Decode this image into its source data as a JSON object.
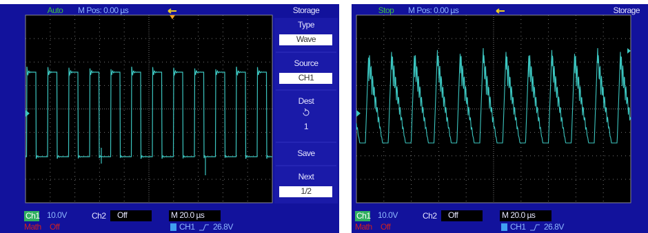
{
  "left": {
    "header": {
      "mode": "Auto",
      "position": "M Pos: 0.00 µs",
      "menu_title": "Storage"
    },
    "menu": [
      {
        "label": "Type",
        "value": "Wave"
      },
      {
        "label": "Source",
        "value": "CH1"
      },
      {
        "label": "Dest",
        "value": "1"
      },
      {
        "label": "Save"
      },
      {
        "label": "Next",
        "value": "1/2"
      }
    ],
    "status": {
      "ch1": "Ch1",
      "ch1_scale": "10.0V",
      "ch2": "Ch2",
      "ch2_state": "Off",
      "timebase": "M 20.0 µs",
      "math": "Math",
      "math_state": "Off",
      "trigger_source": "CH1",
      "trigger_level": "26.8V"
    }
  },
  "right": {
    "header": {
      "mode": "Stop",
      "position": "M Pos: 0.00 µs",
      "menu_title": "Storage"
    },
    "status": {
      "ch1": "Ch1",
      "ch1_scale": "10.0V",
      "ch2": "Ch2",
      "ch2_state": "Off",
      "timebase": "M 20.0 µs",
      "math": "Math",
      "math_state": "Off",
      "trigger_source": "CH1",
      "trigger_level": "26.8V"
    }
  }
}
